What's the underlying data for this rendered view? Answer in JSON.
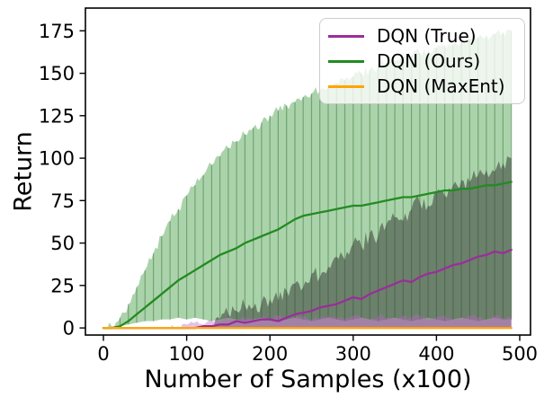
{
  "figure": {
    "background": "#ffffff"
  },
  "chart_data": {
    "type": "line",
    "title": "",
    "xlabel": "Number of Samples (x100)",
    "ylabel": "Return",
    "xlim": [
      -21.6,
      513
    ],
    "ylim": [
      -4.2,
      188.4
    ],
    "xticks": [
      0,
      100,
      200,
      300,
      400,
      500
    ],
    "yticks": [
      0,
      25,
      50,
      75,
      100,
      125,
      150,
      175
    ],
    "grid": false,
    "legend_position": "upper right",
    "x": [
      0,
      10,
      20,
      30,
      40,
      50,
      60,
      70,
      80,
      90,
      100,
      110,
      120,
      130,
      140,
      150,
      160,
      170,
      180,
      190,
      200,
      210,
      220,
      230,
      240,
      250,
      260,
      270,
      280,
      290,
      300,
      310,
      320,
      330,
      340,
      350,
      360,
      370,
      380,
      390,
      400,
      410,
      420,
      430,
      440,
      450,
      460,
      470,
      480,
      490
    ],
    "series": [
      {
        "name": "DQN (True)",
        "color": "#9b2d9b",
        "values": [
          0,
          0,
          0,
          0,
          0,
          0,
          0,
          0,
          0,
          0,
          0,
          0,
          1,
          1,
          2,
          2,
          4,
          3,
          4,
          5,
          5,
          4,
          6,
          8,
          9,
          10,
          12,
          13,
          14,
          16,
          18,
          17,
          20,
          22,
          24,
          26,
          28,
          27,
          30,
          32,
          33,
          35,
          37,
          38,
          40,
          42,
          43,
          45,
          44,
          46
        ]
      },
      {
        "name": "DQN (Ours)",
        "color": "#228b22",
        "values": [
          0,
          0,
          1,
          4,
          8,
          12,
          16,
          20,
          24,
          28,
          31,
          34,
          37,
          40,
          43,
          45,
          47,
          50,
          52,
          54,
          56,
          58,
          61,
          64,
          66,
          67,
          68,
          69,
          70,
          71,
          72,
          72,
          73,
          74,
          75,
          76,
          77,
          77,
          78,
          79,
          80,
          81,
          81,
          82,
          82,
          83,
          84,
          84,
          85,
          86
        ]
      },
      {
        "name": "DQN (MaxEnt)",
        "color": "#ffa500",
        "values": [
          0,
          0,
          0,
          0,
          0,
          0,
          0,
          0,
          0,
          0,
          0,
          0,
          0,
          0,
          0,
          0,
          0,
          0,
          0,
          0,
          0,
          0,
          0,
          0,
          0,
          0,
          0,
          0,
          0,
          0,
          0,
          0,
          0,
          0,
          0,
          0,
          0,
          0,
          0,
          0,
          0,
          0,
          0,
          0,
          0,
          0,
          0,
          0,
          0,
          0
        ]
      }
    ],
    "bands": [
      {
        "name": "dqn-ours-range",
        "color": "rgba(34,139,34,0.38)",
        "edge_noise": 3,
        "hatch": true,
        "hatch_color": "rgba(25,95,25,0.40)",
        "upper": [
          0,
          1,
          6,
          14,
          24,
          34,
          44,
          54,
          63,
          70,
          78,
          84,
          90,
          96,
          101,
          106,
          110,
          114,
          118,
          121,
          125,
          128,
          131,
          133,
          136,
          138,
          140,
          142,
          144,
          146,
          148,
          150,
          152,
          154,
          156,
          157,
          159,
          160,
          162,
          163,
          165,
          166,
          167,
          169,
          170,
          171,
          172,
          173,
          174,
          175
        ],
        "lower": [
          0,
          0,
          1,
          2,
          3,
          4,
          4,
          5,
          5,
          6,
          5,
          6,
          5,
          4,
          5,
          6,
          5,
          4,
          5,
          6,
          5,
          4,
          5,
          6,
          5,
          4,
          5,
          6,
          5,
          4,
          5,
          6,
          5,
          4,
          5,
          6,
          5,
          4,
          5,
          6,
          5,
          4,
          5,
          6,
          5,
          4,
          5,
          6,
          5,
          5
        ]
      },
      {
        "name": "dqn-true-range",
        "color": "rgba(55,62,55,0.55)",
        "edge_noise": 5,
        "hatch": false,
        "upper": [
          0,
          0,
          0,
          0,
          0,
          0,
          0,
          0,
          0,
          0,
          0,
          0,
          0,
          0,
          5,
          8,
          10,
          13,
          12,
          15,
          17,
          16,
          22,
          26,
          24,
          32,
          30,
          36,
          42,
          40,
          50,
          48,
          56,
          54,
          61,
          65,
          63,
          70,
          74,
          72,
          80,
          78,
          84,
          87,
          86,
          90,
          93,
          92,
          97,
          100
        ],
        "lower": 0
      },
      {
        "name": "dqn-true-inner-range",
        "color": "rgba(190,100,200,0.40)",
        "edge_noise": 1.5,
        "hatch": false,
        "upper": [
          0,
          0,
          0,
          0,
          0,
          0,
          0,
          0,
          0,
          1,
          2,
          3,
          2,
          4,
          3,
          5,
          4,
          6,
          5,
          6,
          5,
          7,
          5,
          6,
          7,
          5,
          6,
          7,
          6,
          5,
          7,
          6,
          5,
          7,
          6,
          5,
          7,
          6,
          7,
          5,
          6,
          7,
          5,
          6,
          7,
          6,
          5,
          7,
          6,
          6
        ],
        "lower": 0
      }
    ]
  }
}
